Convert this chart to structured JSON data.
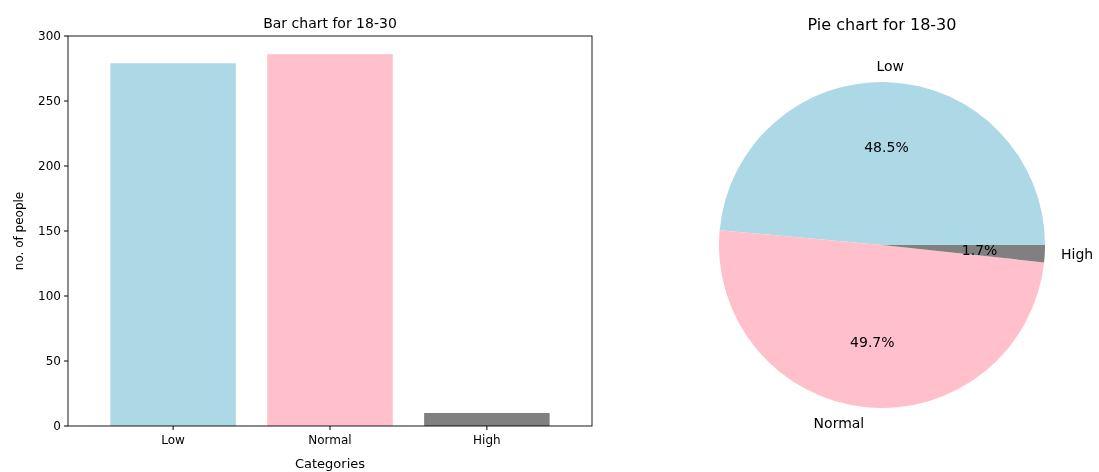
{
  "chart_data": [
    {
      "type": "bar",
      "title": "Bar chart for 18-30",
      "xlabel": "Categories",
      "ylabel": "no. of people",
      "categories": [
        "Low",
        "Normal",
        "High"
      ],
      "values": [
        279,
        286,
        10
      ],
      "colors": [
        "#add8e6",
        "#ffc0cb",
        "#808080"
      ],
      "ylim": [
        0,
        300
      ],
      "yticks": [
        0,
        50,
        100,
        150,
        200,
        250,
        300
      ],
      "grid": false
    },
    {
      "type": "pie",
      "title": "Pie chart for 18-30",
      "categories": [
        "Low",
        "Normal",
        "High"
      ],
      "values": [
        48.5,
        49.7,
        1.7
      ],
      "colors": [
        "#add8e6",
        "#ffc0cb",
        "#808080"
      ],
      "value_labels": [
        "48.5%",
        "49.7%",
        "1.7%"
      ]
    }
  ]
}
